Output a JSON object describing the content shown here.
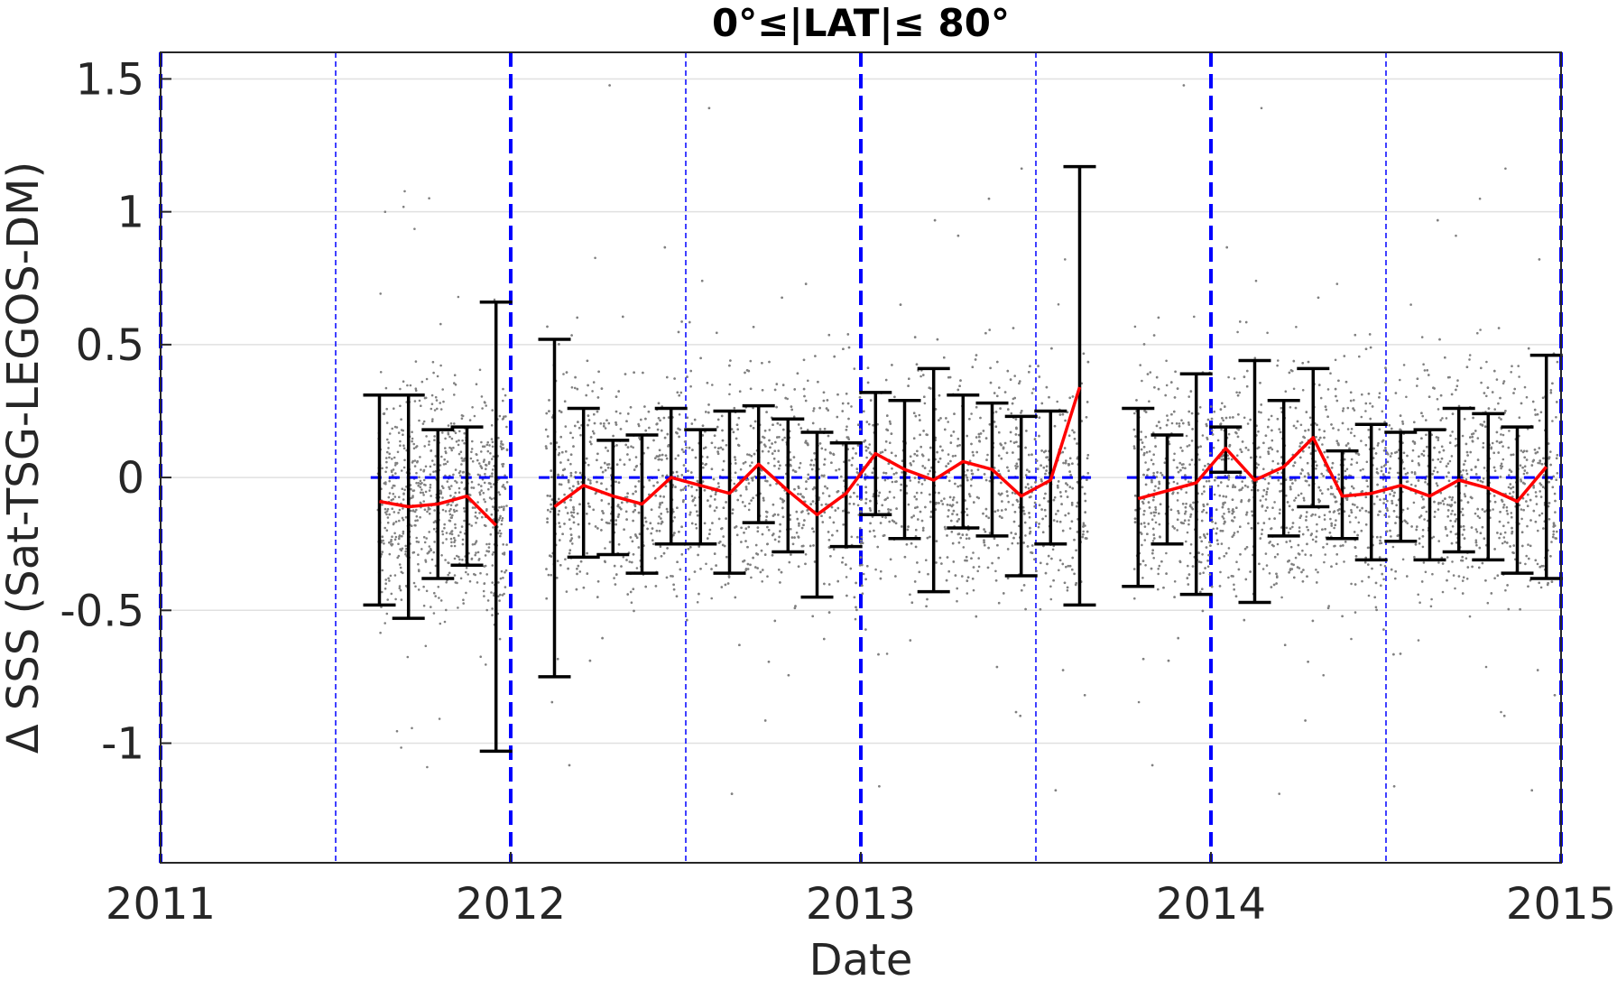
{
  "chart_data": {
    "type": "scatter",
    "title": "0°≤|LAT|≤ 80°",
    "xlabel": "Date",
    "ylabel": "Δ SSS (Sat-TSG-LEGOS-DM)",
    "xlim": [
      2011,
      2015
    ],
    "ylim": [
      -1.45,
      1.6
    ],
    "x_ticks": [
      2011,
      2012,
      2013,
      2014,
      2015
    ],
    "x_tick_labels": [
      "2011",
      "2012",
      "2013",
      "2014",
      "2015"
    ],
    "y_ticks": [
      -1,
      -0.5,
      0,
      0.5,
      1,
      1.5
    ],
    "y_tick_labels": [
      "-1",
      "-0.5",
      "0",
      "0.5",
      "1",
      "1.5"
    ],
    "grid": "horizontal",
    "year_lines": [
      2011,
      2012,
      2013,
      2014,
      2015
    ],
    "half_year_lines": [
      2011.5,
      2012.5,
      2013.5,
      2014.5
    ],
    "colors": {
      "scatter": "#808080",
      "mean_line": "#ff0000",
      "error_bars": "#000000",
      "reference": "#0000ff"
    },
    "series": [
      {
        "name": "",
        "kind": "monthly-mean",
        "x": [
          2011.625,
          2011.708,
          2011.792,
          2011.875,
          2011.958,
          2012.125,
          2012.208,
          2012.292,
          2012.375,
          2012.458,
          2012.542,
          2012.625,
          2012.708,
          2012.792,
          2012.875,
          2012.958,
          2013.042,
          2013.125,
          2013.208,
          2013.292,
          2013.375,
          2013.458,
          2013.542,
          2013.625,
          2013.792,
          2013.875,
          2013.958,
          2014.042,
          2014.125,
          2014.208,
          2014.292,
          2014.375,
          2014.458,
          2014.542,
          2014.625,
          2014.708,
          2014.792,
          2014.875,
          2014.958
        ],
        "mean": [
          -0.09,
          -0.11,
          -0.1,
          -0.07,
          -0.18,
          -0.11,
          -0.03,
          -0.07,
          -0.1,
          0.0,
          -0.03,
          -0.06,
          0.05,
          -0.05,
          -0.14,
          -0.06,
          0.09,
          0.03,
          -0.01,
          0.06,
          0.03,
          -0.07,
          -0.01,
          0.34,
          -0.08,
          -0.05,
          -0.02,
          0.11,
          -0.01,
          0.04,
          0.15,
          -0.07,
          -0.06,
          -0.03,
          -0.07,
          -0.01,
          -0.04,
          -0.09,
          0.04
        ],
        "upper": [
          0.31,
          0.31,
          0.18,
          0.19,
          0.66,
          0.52,
          0.26,
          0.14,
          0.16,
          0.26,
          0.18,
          0.25,
          0.27,
          0.22,
          0.17,
          0.13,
          0.32,
          0.29,
          0.41,
          0.31,
          0.28,
          0.23,
          0.25,
          1.17,
          0.26,
          0.16,
          0.39,
          0.19,
          0.44,
          0.29,
          0.41,
          0.1,
          0.2,
          0.17,
          0.18,
          0.26,
          0.24,
          0.19,
          0.46
        ],
        "lower": [
          -0.48,
          -0.53,
          -0.38,
          -0.33,
          -1.03,
          -0.75,
          -0.3,
          -0.29,
          -0.36,
          -0.25,
          -0.25,
          -0.36,
          -0.17,
          -0.28,
          -0.45,
          -0.26,
          -0.14,
          -0.23,
          -0.43,
          -0.19,
          -0.22,
          -0.37,
          -0.25,
          -0.48,
          -0.41,
          -0.25,
          -0.44,
          0.02,
          -0.47,
          -0.22,
          -0.11,
          -0.23,
          -0.31,
          -0.24,
          -0.31,
          -0.28,
          -0.31,
          -0.36,
          -0.38
        ]
      }
    ],
    "scatter_segments": [
      {
        "x0": 2011.62,
        "x1": 2011.99,
        "center": -0.08,
        "spread": 0.35
      },
      {
        "x0": 2012.1,
        "x1": 2013.65,
        "center": -0.02,
        "spread": 0.36
      },
      {
        "x0": 2013.78,
        "x1": 2014.99,
        "center": -0.02,
        "spread": 0.36
      }
    ]
  }
}
